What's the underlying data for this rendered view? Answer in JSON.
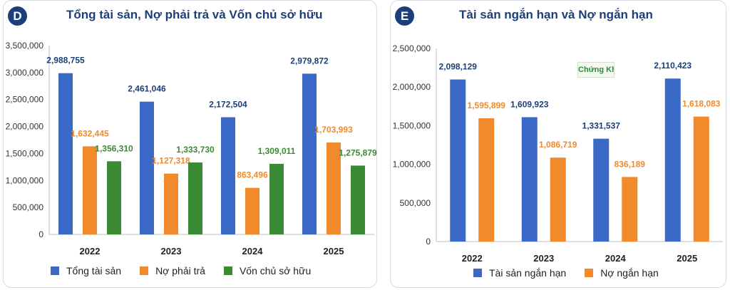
{
  "colors": {
    "blue": "#3b69c8",
    "orange": "#f08a2b",
    "green": "#3b8a35",
    "title": "#1b3f7a"
  },
  "panelD": {
    "badge": "D",
    "title": "Tổng tài sản, Nợ phải trả và Vốn chủ sở hữu",
    "legend": [
      "Tổng tài sản",
      "Nợ phải trả",
      "Vốn chủ sở hữu"
    ]
  },
  "panelE": {
    "badge": "E",
    "title": "Tài sản ngắn hạn và Nợ ngắn hạn",
    "legend": [
      "Tài sản ngắn hạn",
      "Nợ ngắn hạn"
    ],
    "logo_text": "Chứng Khoán"
  },
  "chart_data": [
    {
      "type": "bar",
      "title": "Tổng tài sản, Nợ phải trả và Vốn chủ sở hữu",
      "categories": [
        "2022",
        "2023",
        "2024",
        "2025"
      ],
      "ylim": [
        0,
        3500000
      ],
      "yticks": [
        "0",
        "500,000",
        "1,000,000",
        "1,500,000",
        "2,000,000",
        "2,500,000",
        "3,000,000",
        "3,500,000"
      ],
      "grid": false,
      "legend_position": "bottom",
      "series": [
        {
          "name": "Tổng tài sản",
          "color": "#3b69c8",
          "values": [
            2988755,
            2461046,
            2172504,
            2979872
          ],
          "labels": [
            "2,988,755",
            "2,461,046",
            "2,172,504",
            "2,979,872"
          ]
        },
        {
          "name": "Nợ phải trả",
          "color": "#f08a2b",
          "values": [
            1632445,
            1127318,
            863496,
            1703993
          ],
          "labels": [
            "1,632,445",
            "1,127,318",
            "863,496",
            "1,703,993"
          ]
        },
        {
          "name": "Vốn chủ sở hữu",
          "color": "#3b8a35",
          "values": [
            1356310,
            1333730,
            1309011,
            1275879
          ],
          "labels": [
            "1,356,310",
            "1,333,730",
            "1,309,011",
            "1,275,879"
          ]
        }
      ]
    },
    {
      "type": "bar",
      "title": "Tài sản ngắn hạn và Nợ ngắn hạn",
      "categories": [
        "2022",
        "2023",
        "2024",
        "2025"
      ],
      "ylim": [
        0,
        2500000
      ],
      "yticks": [
        "0",
        "500,000",
        "1,000,000",
        "1,500,000",
        "2,000,000",
        "2,500,000"
      ],
      "grid": false,
      "legend_position": "bottom",
      "series": [
        {
          "name": "Tài sản ngắn hạn",
          "color": "#3b69c8",
          "values": [
            2098129,
            1609923,
            1331537,
            2110423
          ],
          "labels": [
            "2,098,129",
            "1,609,923",
            "1,331,537",
            "2,110,423"
          ]
        },
        {
          "name": "Nợ ngắn hạn",
          "color": "#f08a2b",
          "values": [
            1595899,
            1086719,
            836189,
            1618083
          ],
          "labels": [
            "1,595,899",
            "1,086,719",
            "836,189",
            "1,618,083"
          ]
        }
      ]
    }
  ]
}
